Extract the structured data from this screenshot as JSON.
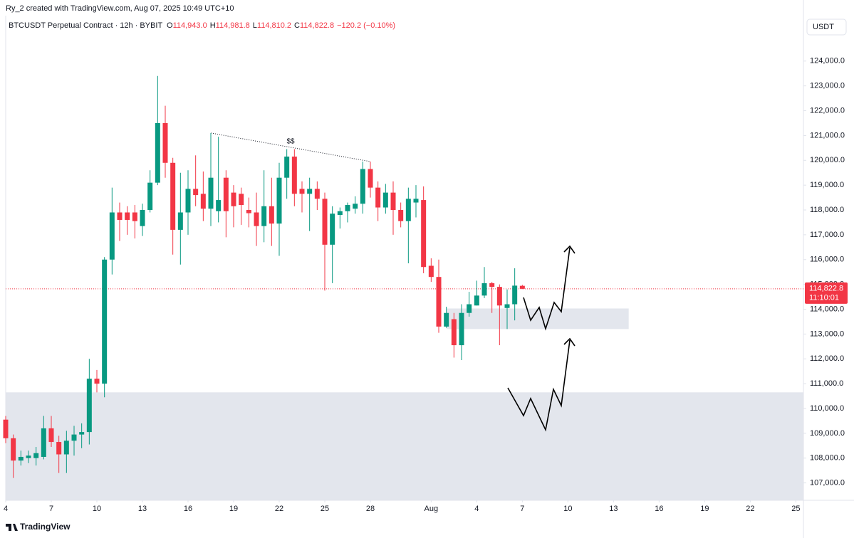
{
  "header": {
    "attribution": "Ry_2 created with TradingView.com, Aug 07, 2025 10:49 UTC+10",
    "symbol": "BTCUSDT Perpetual Contract · 12h · BYBIT",
    "ohlc": [
      {
        "label": "O",
        "value": "114,943.0"
      },
      {
        "label": "H",
        "value": "114,981.8"
      },
      {
        "label": "L",
        "value": "114,810.2"
      },
      {
        "label": "C",
        "value": "114,822.8"
      }
    ],
    "change": "−120.2 (−0.10%)",
    "currency": "USDT"
  },
  "footer": {
    "brand": "TradingView"
  },
  "chart_data": {
    "type": "candlestick",
    "up_color": "#089981",
    "down_color": "#f23645",
    "x": [
      0,
      0.5,
      1,
      1.5,
      2,
      2.5,
      3,
      3.5,
      4,
      4.5,
      5,
      5.5,
      6,
      6.5,
      7,
      7.5,
      8,
      8.5,
      9,
      9.5,
      10,
      10.5,
      11,
      11.5,
      12,
      12.5,
      13,
      13.5,
      14,
      14.5,
      15,
      15.5,
      16,
      16.5,
      17,
      17.5,
      18,
      18.5,
      19,
      19.5,
      20,
      20.5,
      21,
      21.5,
      22,
      22.5,
      23,
      23.5,
      24,
      24.5,
      25,
      25.5,
      26,
      26.5,
      27,
      27.5,
      28,
      28.5,
      29,
      29.5,
      30,
      30.5,
      31,
      31.5,
      32,
      32.5,
      33,
      33.5,
      34
    ],
    "open": [
      109550,
      108800,
      107900,
      108000,
      108000,
      108050,
      109200,
      108650,
      108150,
      108700,
      108950,
      109050,
      111200,
      111000,
      116000,
      117900,
      117900,
      117900,
      117350,
      118000,
      119100,
      121500,
      119900,
      117200,
      117900,
      118850,
      118650,
      118050,
      117950,
      119300,
      118700,
      118650,
      118000,
      117900,
      117350,
      118150,
      117450,
      119300,
      120150,
      118850,
      118650,
      118850,
      118450,
      116600,
      117800,
      117950,
      118050,
      118250,
      119650,
      118900,
      118100,
      118700,
      118000,
      117550,
      118300,
      118400,
      115750,
      115300,
      113300,
      113600,
      112550,
      113850,
      114150,
      114550,
      115050,
      114900,
      114050,
      114200,
      114943
    ],
    "high": [
      109700,
      108950,
      108300,
      108300,
      108450,
      109700,
      109700,
      108900,
      109100,
      109300,
      109400,
      112000,
      111550,
      116100,
      118900,
      118300,
      118150,
      118200,
      118250,
      119600,
      123400,
      122200,
      120100,
      119500,
      119600,
      120200,
      119550,
      121100,
      120950,
      119600,
      119000,
      118900,
      118500,
      118700,
      119600,
      119300,
      119900,
      120450,
      120450,
      119150,
      119300,
      119150,
      118700,
      118150,
      118100,
      118300,
      118550,
      119950,
      119950,
      119150,
      119050,
      119150,
      118300,
      118900,
      119000,
      118950,
      116050,
      116000,
      114100,
      113850,
      114200,
      114700,
      115150,
      115700,
      115100,
      115000,
      114800,
      115650,
      114981.8
    ],
    "low": [
      108600,
      107200,
      107700,
      107800,
      107700,
      107950,
      108450,
      107400,
      107400,
      108100,
      108400,
      108550,
      110650,
      110450,
      115400,
      116750,
      117000,
      116850,
      116950,
      117900,
      119000,
      119300,
      116200,
      115800,
      117000,
      118150,
      117550,
      117350,
      117500,
      116900,
      117300,
      117400,
      117300,
      116550,
      116700,
      116550,
      116150,
      118450,
      118150,
      117900,
      117150,
      118000,
      114750,
      115050,
      117250,
      117500,
      117850,
      117850,
      118500,
      117550,
      117850,
      117000,
      117300,
      115850,
      117700,
      115450,
      115100,
      113050,
      113250,
      112050,
      111950,
      113700,
      114150,
      114450,
      113850,
      112550,
      113200,
      113550,
      114810.2
    ],
    "close": [
      108800,
      107900,
      108050,
      108100,
      108200,
      109200,
      108650,
      108150,
      108700,
      108950,
      109050,
      111200,
      111000,
      116000,
      117900,
      117600,
      117600,
      117550,
      118000,
      119100,
      121500,
      119900,
      117200,
      117900,
      118850,
      118600,
      118050,
      119300,
      118400,
      117950,
      118150,
      118200,
      117870,
      117350,
      118150,
      117450,
      119300,
      120150,
      118650,
      118650,
      118850,
      118450,
      116600,
      117850,
      117950,
      118200,
      118250,
      119650,
      118900,
      118100,
      118700,
      118000,
      117550,
      118450,
      118450,
      115700,
      115300,
      113300,
      113850,
      112550,
      113850,
      114200,
      114550,
      115050,
      114900,
      114150,
      114200,
      114950,
      114822.8
    ],
    "xlim": [
      0,
      52.5
    ],
    "xticks": [
      {
        "value": 0,
        "label": "4"
      },
      {
        "value": 3,
        "label": "7"
      },
      {
        "value": 6,
        "label": "10"
      },
      {
        "value": 9,
        "label": "13"
      },
      {
        "value": 12,
        "label": "16"
      },
      {
        "value": 15,
        "label": "19"
      },
      {
        "value": 18,
        "label": "22"
      },
      {
        "value": 21,
        "label": "25"
      },
      {
        "value": 24,
        "label": "28"
      },
      {
        "value": 28,
        "label": "Aug"
      },
      {
        "value": 31,
        "label": "4"
      },
      {
        "value": 34,
        "label": "7"
      },
      {
        "value": 37,
        "label": "10"
      },
      {
        "value": 40,
        "label": "13"
      },
      {
        "value": 43,
        "label": "16"
      },
      {
        "value": 46,
        "label": "19"
      },
      {
        "value": 49,
        "label": "22"
      },
      {
        "value": 52,
        "label": "25"
      }
    ],
    "ylim": [
      106300,
      125830
    ],
    "yticks": [
      {
        "value": 107000,
        "label": "107,000.0"
      },
      {
        "value": 108000,
        "label": "108,000.0"
      },
      {
        "value": 109000,
        "label": "109,000.0"
      },
      {
        "value": 110000,
        "label": "110,000.0"
      },
      {
        "value": 111000,
        "label": "111,000.0"
      },
      {
        "value": 112000,
        "label": "112,000.0"
      },
      {
        "value": 113000,
        "label": "113,000.0"
      },
      {
        "value": 114000,
        "label": "114,000.0"
      },
      {
        "value": 115000,
        "label": "115,000.0"
      },
      {
        "value": 116000,
        "label": "116,000.0"
      },
      {
        "value": 117000,
        "label": "117,000.0"
      },
      {
        "value": 118000,
        "label": "118,000.0"
      },
      {
        "value": 119000,
        "label": "119,000.0"
      },
      {
        "value": 120000,
        "label": "120,000.0"
      },
      {
        "value": 121000,
        "label": "121,000.0"
      },
      {
        "value": 122000,
        "label": "122,000.0"
      },
      {
        "value": 123000,
        "label": "123,000.0"
      },
      {
        "value": 124000,
        "label": "124,000.0"
      }
    ],
    "grid": false,
    "last_price": {
      "label": "114,822.8",
      "countdown": "11:10:01",
      "color": "#f23645"
    },
    "zones": [
      {
        "x": [
          0,
          52.5
        ],
        "y": [
          106300,
          110650
        ],
        "color": "#e0e3eb"
      },
      {
        "x": [
          29,
          41
        ],
        "y": [
          113200,
          114030
        ],
        "color": "#e0e3eb"
      }
    ],
    "trendline": {
      "x": [
        13.5,
        24
      ],
      "y": [
        121100,
        119950
      ],
      "label": "$$"
    }
  }
}
